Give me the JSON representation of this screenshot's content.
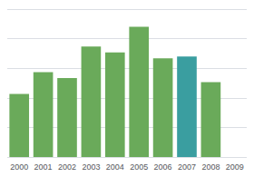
{
  "chart_data": {
    "type": "bar",
    "categories": [
      "2000",
      "2001",
      "2002",
      "2003",
      "2004",
      "2005",
      "2006",
      "2007",
      "2008",
      "2009"
    ],
    "values": [
      32,
      43,
      40,
      56,
      53,
      66,
      50,
      51,
      38,
      0
    ],
    "colors": [
      "#6aaa5a",
      "#6aaa5a",
      "#6aaa5a",
      "#6aaa5a",
      "#6aaa5a",
      "#6aaa5a",
      "#6aaa5a",
      "#3a9ea0",
      "#6aaa5a",
      "#6aaa5a"
    ],
    "ylim": [
      0,
      75
    ],
    "yticks": [
      0,
      15,
      30,
      45,
      60,
      75
    ],
    "grid": true,
    "tick_labels": "x"
  }
}
